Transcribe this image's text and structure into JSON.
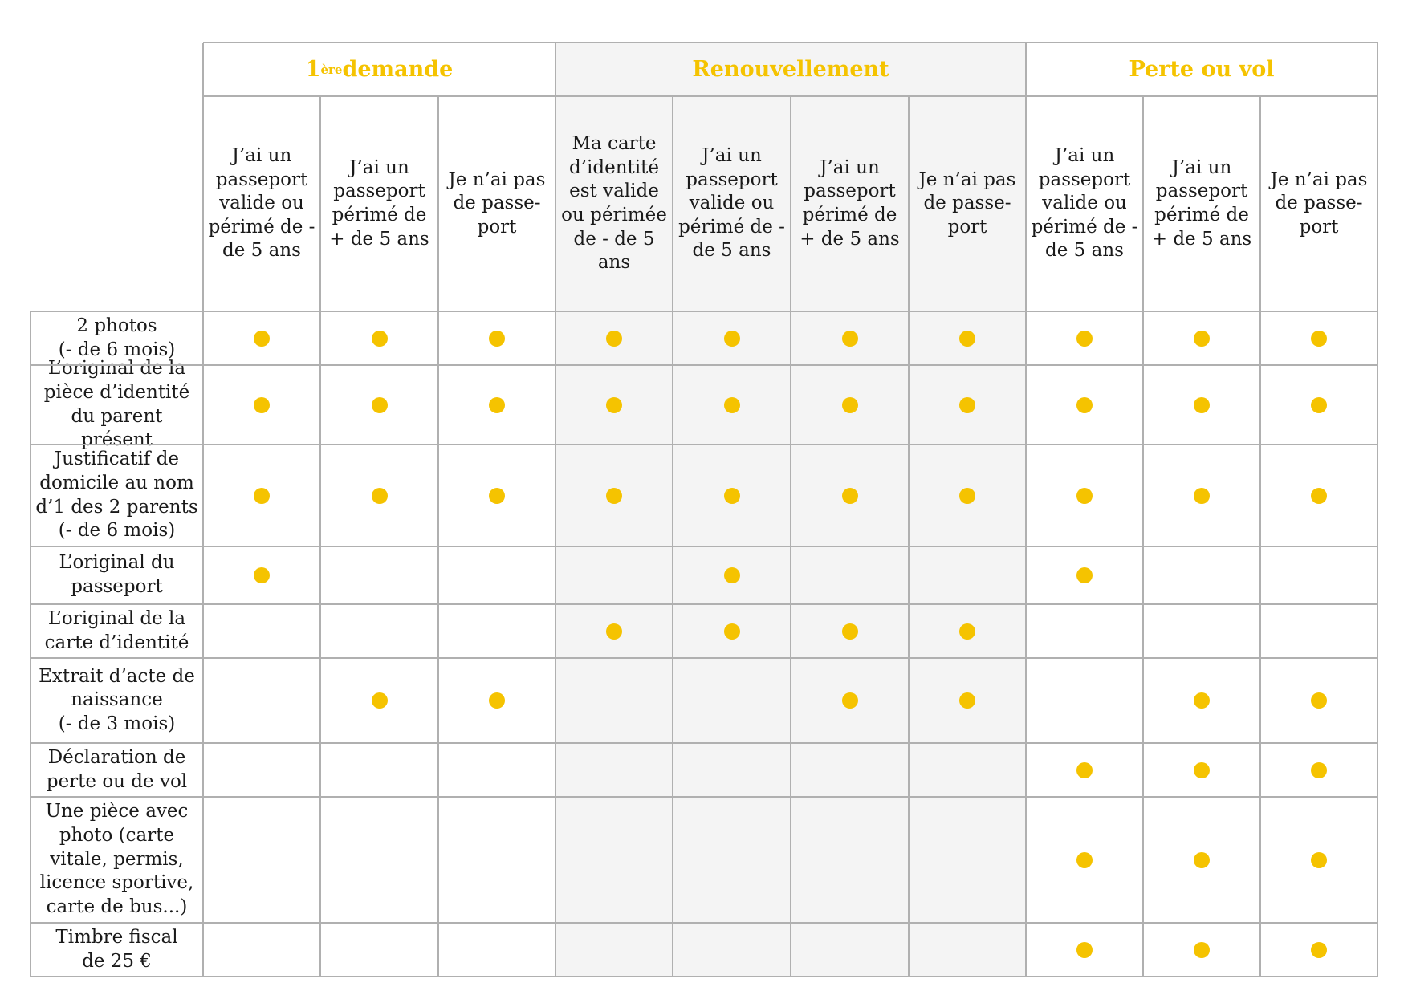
{
  "header_groups": [
    {
      "label_main": "1",
      "label_sup": "ère",
      "label_rest": " demande",
      "sub_headers": [
        "J’ai un passeport valide ou périmé de - de 5 ans",
        "J’ai un passeport périmé de + de 5 ans",
        "Je n’ai pas de passe-port"
      ]
    },
    {
      "label_main": "Renouvellement",
      "label_sup": "",
      "label_rest": "",
      "sub_headers": [
        "Ma carte d’identité est valide ou périmée de - de 5 ans",
        "J’ai un passeport valide ou périmé de - de 5 ans",
        "J’ai un passeport périmé de + de 5 ans",
        "Je n’ai pas de passe-port"
      ]
    },
    {
      "label_main": "Perte ou vol",
      "label_sup": "",
      "label_rest": "",
      "sub_headers": [
        "J’ai un passeport valide ou périmé de - de 5 ans",
        "J’ai un passeport périmé de + de 5 ans",
        "Je n’ai pas de passe-port"
      ]
    }
  ],
  "rows": [
    {
      "label": "2 photos\n(- de 6 mois)",
      "marks": [
        1,
        1,
        1,
        1,
        1,
        1,
        1,
        1,
        1,
        1
      ]
    },
    {
      "label": "L’original de la pièce d’identité du parent présent",
      "marks": [
        1,
        1,
        1,
        1,
        1,
        1,
        1,
        1,
        1,
        1
      ]
    },
    {
      "label": "Justificatif de domicile au nom d’1 des 2 parents\n(- de 6 mois)",
      "marks": [
        1,
        1,
        1,
        1,
        1,
        1,
        1,
        1,
        1,
        1
      ]
    },
    {
      "label": "L’original du passeport",
      "marks": [
        1,
        0,
        0,
        0,
        1,
        0,
        0,
        1,
        0,
        0
      ]
    },
    {
      "label": "L’original de la carte d’identité",
      "marks": [
        0,
        0,
        0,
        1,
        1,
        1,
        1,
        0,
        0,
        0
      ]
    },
    {
      "label": "Extrait d’acte de naissance\n(- de 3 mois)",
      "marks": [
        0,
        1,
        1,
        0,
        0,
        1,
        1,
        0,
        1,
        1
      ]
    },
    {
      "label": "Déclaration de perte ou de vol",
      "marks": [
        0,
        0,
        0,
        0,
        0,
        0,
        0,
        1,
        1,
        1
      ]
    },
    {
      "label": "Une pièce avec photo (carte vitale, permis, licence sportive, carte de bus...)",
      "marks": [
        0,
        0,
        0,
        0,
        0,
        0,
        0,
        1,
        1,
        1
      ]
    },
    {
      "label": "Timbre fiscal\nde 25 €",
      "marks": [
        0,
        0,
        0,
        0,
        0,
        0,
        0,
        1,
        1,
        1
      ]
    }
  ],
  "colors": {
    "accent": "#f5c300",
    "grid_line": "#b0b0b0",
    "shaded_group": "#f4f4f4",
    "text": "#1a1a1a"
  }
}
